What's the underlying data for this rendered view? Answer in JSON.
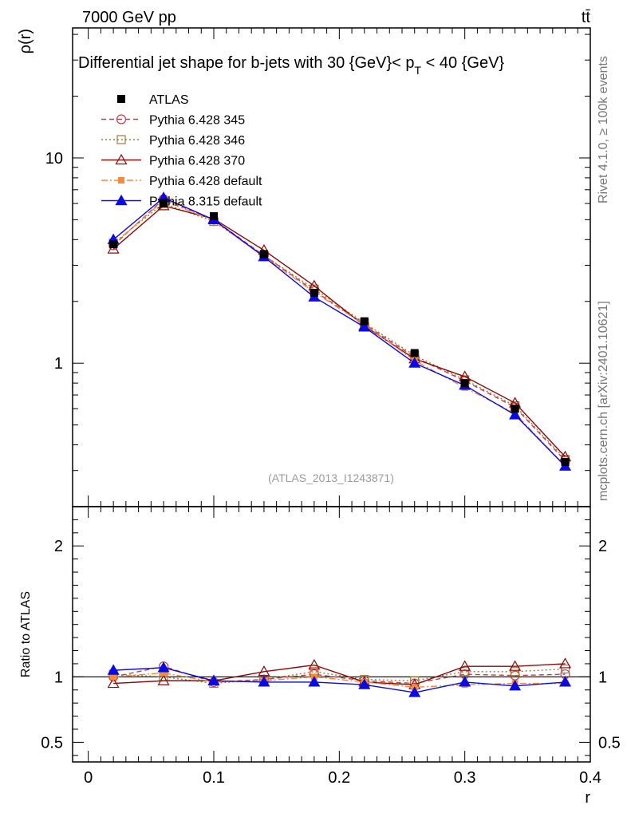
{
  "header": {
    "energy_label": "7000 GeV pp",
    "process_label": "tt̄",
    "title": "Differential jet shape for b-jets with 30 {GeV}< p",
    "title_sub": "T",
    "title_end": " < 40 {GeV}",
    "watermark": "(ATLAS_2013_I1243871)",
    "side_top": "Rivet 4.1.0, ≥ 100k events",
    "side_bottom": "mcplots.cern.ch [arXiv:2401.10621]"
  },
  "chart_data": [
    {
      "id": "main",
      "type": "line",
      "yscale": "log",
      "ylabel": "ρ(r)",
      "xlabel": "r",
      "xlim": [
        -0.0125,
        0.4
      ],
      "ylim": [
        0.2,
        43
      ],
      "yticks": [
        {
          "v": 1,
          "label": "1"
        },
        {
          "v": 10,
          "label": "10"
        }
      ],
      "xticks": [
        {
          "v": 0,
          "label": "0"
        },
        {
          "v": 0.1,
          "label": "0.1"
        },
        {
          "v": 0.2,
          "label": "0.2"
        },
        {
          "v": 0.3,
          "label": "0.3"
        },
        {
          "v": 0.4,
          "label": "0.4"
        }
      ],
      "x": [
        0.02,
        0.06,
        0.1,
        0.14,
        0.18,
        0.22,
        0.26,
        0.3,
        0.34,
        0.38
      ],
      "series": [
        {
          "name": "ATLAS",
          "color": "#000000",
          "marker": "square-filled",
          "line": "none",
          "values": [
            3.8,
            6.0,
            5.2,
            3.4,
            2.2,
            1.6,
            1.12,
            0.8,
            0.6,
            0.33
          ]
        },
        {
          "name": "Pythia 6.428 345",
          "color": "#bf3f4f",
          "marker": "circle-open",
          "line": "dashed",
          "values": [
            3.75,
            6.3,
            5.0,
            3.35,
            2.25,
            1.55,
            1.07,
            0.82,
            0.61,
            0.335
          ]
        },
        {
          "name": "Pythia 6.428 346",
          "color": "#a07a3a",
          "marker": "square-open",
          "line": "dotted",
          "values": [
            3.85,
            6.0,
            4.9,
            3.35,
            2.3,
            1.57,
            1.09,
            0.83,
            0.62,
            0.34
          ]
        },
        {
          "name": "Pythia 6.428 370",
          "color": "#8b0a0a",
          "marker": "triangle-open",
          "line": "solid",
          "values": [
            3.6,
            5.85,
            5.05,
            3.55,
            2.38,
            1.52,
            1.05,
            0.86,
            0.64,
            0.35
          ]
        },
        {
          "name": "Pythia 6.428 default",
          "color": "#f58a3a",
          "marker": "square-filled-small",
          "line": "dashdot",
          "values": [
            3.8,
            6.2,
            4.95,
            3.3,
            2.22,
            1.54,
            1.03,
            0.76,
            0.57,
            0.315
          ]
        },
        {
          "name": "Pythia 8.315 default",
          "color": "#0a0ae6",
          "marker": "triangle-filled",
          "line": "solid",
          "values": [
            4.0,
            6.4,
            5.0,
            3.3,
            2.1,
            1.5,
            1.0,
            0.78,
            0.56,
            0.315
          ]
        }
      ]
    },
    {
      "id": "ratio",
      "type": "line",
      "yscale": "linear",
      "ylabel": "Ratio to ATLAS",
      "ylim": [
        0.35,
        2.3
      ],
      "yticks": [
        {
          "v": 0.5,
          "label": "0.5"
        },
        {
          "v": 1,
          "label": "1"
        },
        {
          "v": 2,
          "label": "2"
        }
      ],
      "x": [
        0.02,
        0.06,
        0.1,
        0.14,
        0.18,
        0.22,
        0.26,
        0.3,
        0.34,
        0.38
      ],
      "series": [
        {
          "name": "Pythia 6.428 345",
          "values": [
            1.0,
            1.08,
            0.96,
            0.98,
            1.02,
            0.97,
            0.95,
            1.02,
            1.01,
            1.02
          ]
        },
        {
          "name": "Pythia 6.428 346",
          "values": [
            1.02,
            1.0,
            0.95,
            0.98,
            1.04,
            0.98,
            0.97,
            1.04,
            1.04,
            1.06
          ]
        },
        {
          "name": "Pythia 6.428 370",
          "values": [
            0.95,
            0.97,
            0.97,
            1.04,
            1.09,
            0.96,
            0.94,
            1.08,
            1.08,
            1.1
          ]
        },
        {
          "name": "Pythia 6.428 default",
          "values": [
            1.0,
            1.03,
            0.96,
            0.97,
            1.0,
            0.96,
            0.92,
            0.94,
            0.95,
            0.95
          ]
        },
        {
          "name": "Pythia 8.315 default",
          "values": [
            1.05,
            1.07,
            0.97,
            0.96,
            0.96,
            0.94,
            0.88,
            0.96,
            0.93,
            0.96
          ]
        }
      ]
    }
  ]
}
